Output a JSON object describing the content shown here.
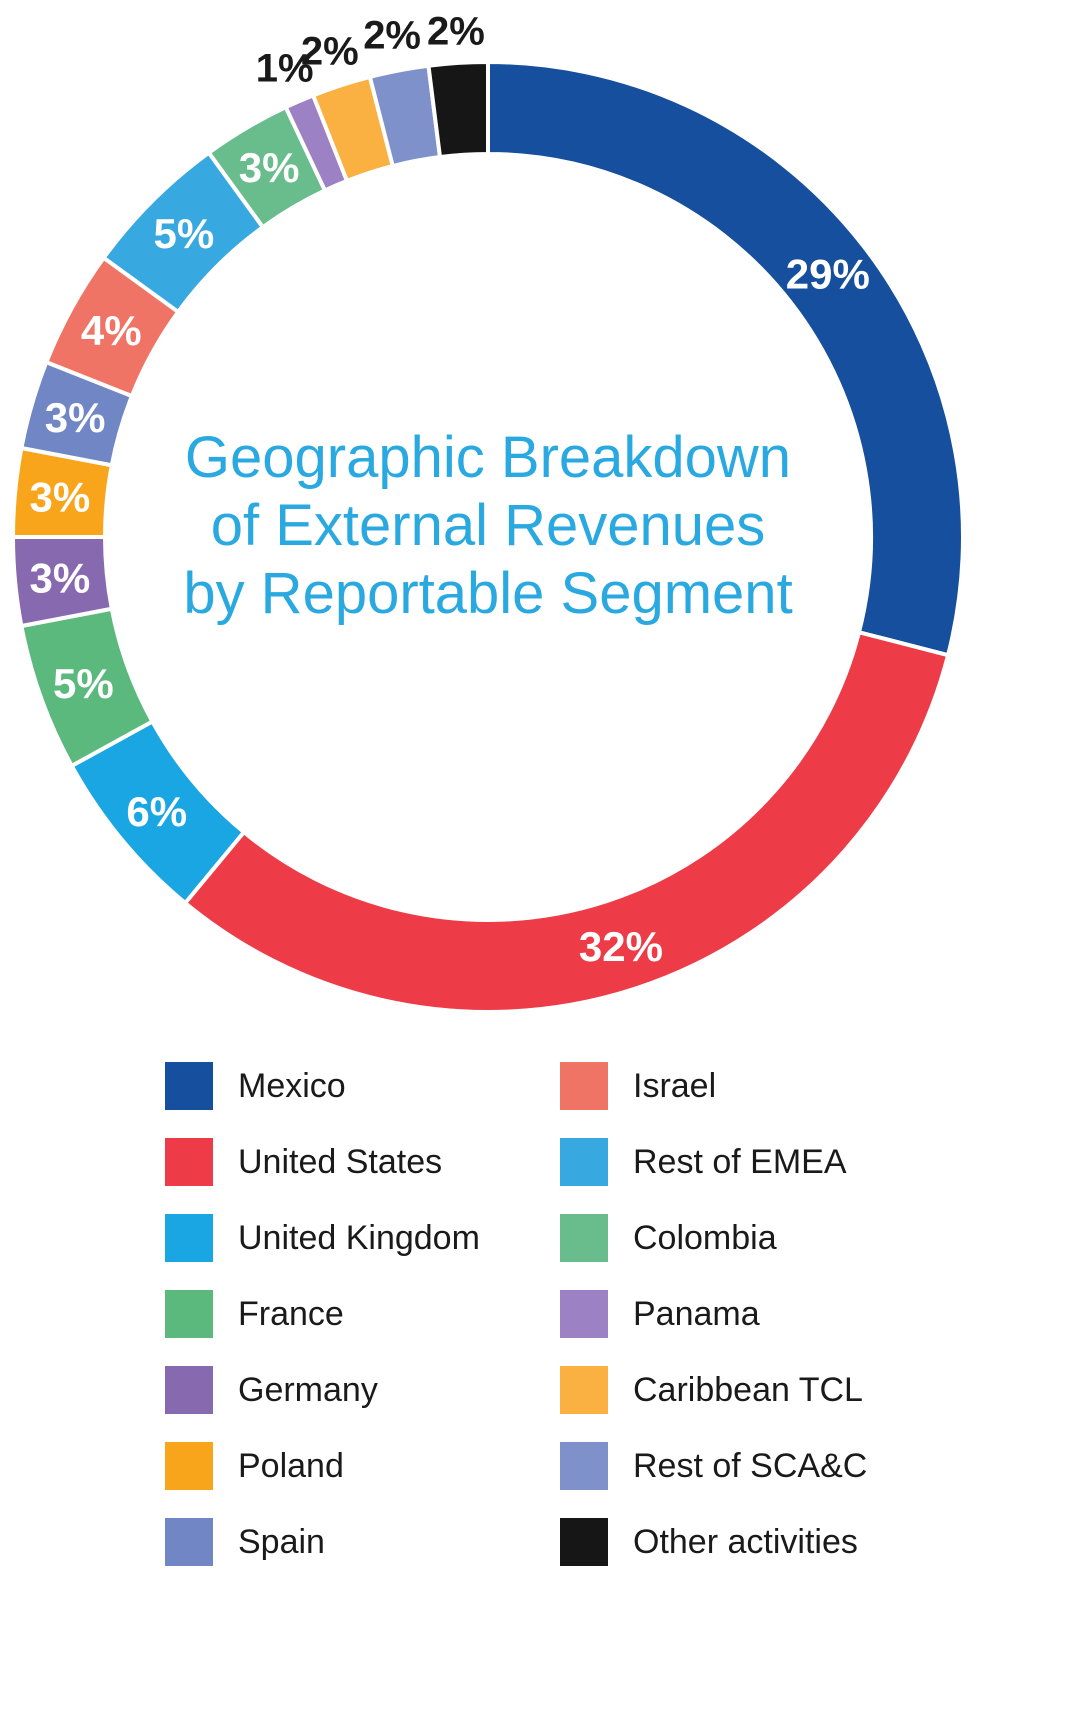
{
  "title": {
    "lines": [
      "Geographic Breakdown",
      "of External Revenues",
      "by Reportable Segment"
    ],
    "color": "#2aa9e1"
  },
  "chart_data": {
    "type": "pie",
    "subtype": "donut",
    "title": "Geographic Breakdown of External Revenues by Reportable Segment",
    "direction": "clockwise",
    "start_angle_deg": 0,
    "inside_label_color": "#ffffff",
    "outside_label_color": "#1a1a1a",
    "segments": [
      {
        "label": "Mexico",
        "value": 29,
        "pct_label": "29%",
        "color": "#164f9d",
        "label_position": "inside"
      },
      {
        "label": "United States",
        "value": 32,
        "pct_label": "32%",
        "color": "#ed3c47",
        "label_position": "inside"
      },
      {
        "label": "United Kingdom",
        "value": 6,
        "pct_label": "6%",
        "color": "#1aa6e3",
        "label_position": "inside"
      },
      {
        "label": "France",
        "value": 5,
        "pct_label": "5%",
        "color": "#5bb97d",
        "label_position": "inside"
      },
      {
        "label": "Germany",
        "value": 3,
        "pct_label": "3%",
        "color": "#8769b0",
        "label_position": "inside"
      },
      {
        "label": "Poland",
        "value": 3,
        "pct_label": "3%",
        "color": "#f9a51b",
        "label_position": "inside"
      },
      {
        "label": "Spain",
        "value": 3,
        "pct_label": "3%",
        "color": "#7187c5",
        "label_position": "inside"
      },
      {
        "label": "Israel",
        "value": 4,
        "pct_label": "4%",
        "color": "#f07466",
        "label_position": "inside"
      },
      {
        "label": "Rest of EMEA",
        "value": 5,
        "pct_label": "5%",
        "color": "#38a8e0",
        "label_position": "inside"
      },
      {
        "label": "Colombia",
        "value": 3,
        "pct_label": "3%",
        "color": "#69bc8b",
        "label_position": "inside"
      },
      {
        "label": "Panama",
        "value": 1,
        "pct_label": "1%",
        "color": "#9d81c5",
        "label_position": "outside"
      },
      {
        "label": "Caribbean TCL",
        "value": 2,
        "pct_label": "2%",
        "color": "#fbb042",
        "label_position": "outside"
      },
      {
        "label": "Rest of SCA&C",
        "value": 2,
        "pct_label": "2%",
        "color": "#7e91cb",
        "label_position": "outside"
      },
      {
        "label": "Other activities",
        "value": 2,
        "pct_label": "2%",
        "color": "#161616",
        "label_position": "outside"
      }
    ]
  },
  "legend": {
    "left": [
      "Mexico",
      "United States",
      "United Kingdom",
      "France",
      "Germany",
      "Poland",
      "Spain"
    ],
    "right": [
      "Israel",
      "Rest of EMEA",
      "Colombia",
      "Panama",
      "Caribbean TCL",
      "Rest of SCA&C",
      "Other activities"
    ]
  }
}
